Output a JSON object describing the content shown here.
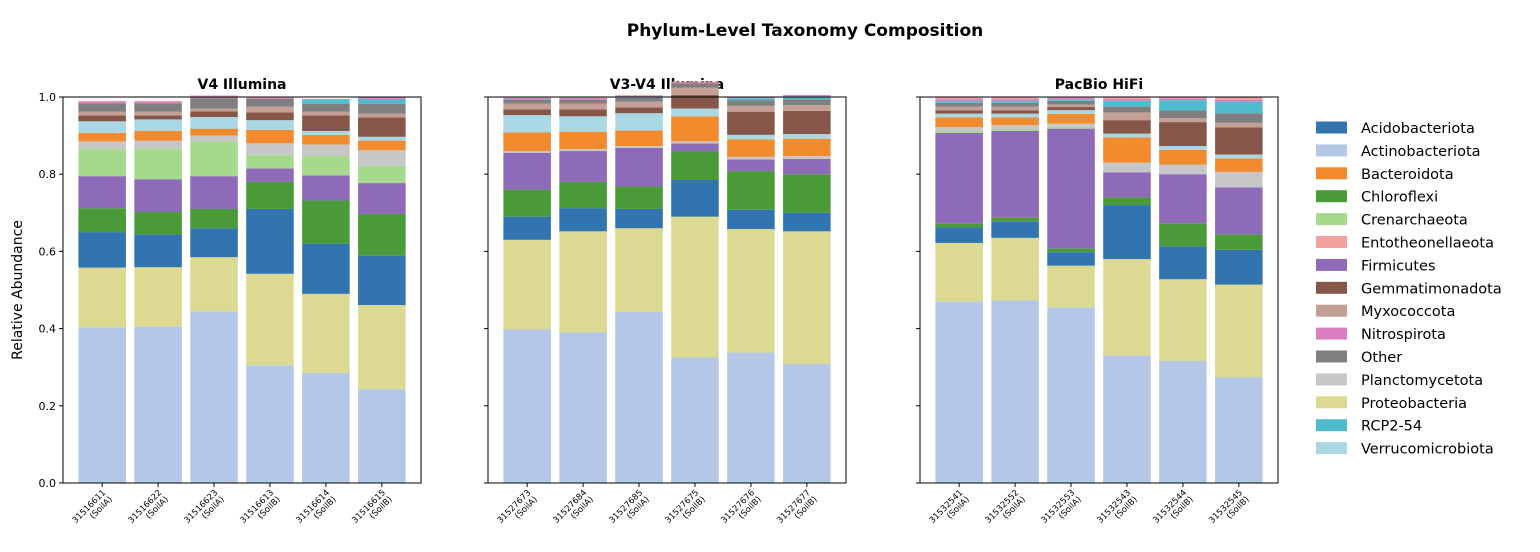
{
  "title": "Phylum-Level Taxonomy Composition",
  "legend_position": "right",
  "chart_data": {
    "type": "bar",
    "stacked": true,
    "title": "Phylum-Level Taxonomy Composition",
    "ylabel": "Relative Abundance",
    "ylim": [
      0,
      1
    ],
    "yticks": [
      "0.0",
      "0.2",
      "0.4",
      "0.6",
      "0.8",
      "1.0"
    ],
    "grid": false,
    "categories_order": [
      "Actinobacteriota",
      "Proteobacteria",
      "Acidobacteriota",
      "Chloroflexi",
      "Firmicutes",
      "Crenarchaeota",
      "Planctomycetota",
      "Bacteroidota",
      "Verrucomicrobiota",
      "Gemmatimonadota",
      "Myxococcota",
      "Other",
      "RCP2-54",
      "Nitrospirota",
      "Entotheonellaeota"
    ],
    "legend": [
      {
        "name": "Acidobacteriota",
        "color": "#3274b0"
      },
      {
        "name": "Actinobacteriota",
        "color": "#b4c7e7"
      },
      {
        "name": "Bacteroidota",
        "color": "#f28a2e"
      },
      {
        "name": "Chloroflexi",
        "color": "#4b9a39"
      },
      {
        "name": "Crenarchaeota",
        "color": "#a6d98e"
      },
      {
        "name": "Entotheonellaeota",
        "color": "#f2a19f"
      },
      {
        "name": "Firmicutes",
        "color": "#8e6bb8"
      },
      {
        "name": "Gemmatimonadota",
        "color": "#865748"
      },
      {
        "name": "Myxococcota",
        "color": "#c39f96"
      },
      {
        "name": "Nitrospirota",
        "color": "#d97fc0"
      },
      {
        "name": "Other",
        "color": "#7f7f7f"
      },
      {
        "name": "Planctomycetota",
        "color": "#c7c7c7"
      },
      {
        "name": "Proteobacteria",
        "color": "#dcda92"
      },
      {
        "name": "RCP2-54",
        "color": "#4ebccd"
      },
      {
        "name": "Verrucomicrobiota",
        "color": "#a9d8e4"
      }
    ],
    "panels": [
      {
        "title": "V4 Illumina",
        "categories": [
          "31516611\n(SoilA)",
          "31516622\n(SoilA)",
          "31516623\n(SoilA)",
          "31516613\n(SoilB)",
          "31516614\n(SoilB)",
          "31516615\n(SoilB)"
        ],
        "samples": [
          {
            "Actinobacteriota": 0.403,
            "Proteobacteria": 0.155,
            "Acidobacteriota": 0.092,
            "Chloroflexi": 0.062,
            "Firmicutes": 0.083,
            "Crenarchaeota": 0.07,
            "Planctomycetota": 0.02,
            "Bacteroidota": 0.022,
            "Verrucomicrobiota": 0.03,
            "Gemmatimonadota": 0.015,
            "Myxococcota": 0.01,
            "Other": 0.022,
            "RCP2-54": 0.0,
            "Nitrospirota": 0.004,
            "Entotheonellaeota": 0.002
          },
          {
            "Actinobacteriota": 0.405,
            "Proteobacteria": 0.154,
            "Acidobacteriota": 0.085,
            "Chloroflexi": 0.058,
            "Firmicutes": 0.085,
            "Crenarchaeota": 0.08,
            "Planctomycetota": 0.02,
            "Bacteroidota": 0.025,
            "Verrucomicrobiota": 0.03,
            "Gemmatimonadota": 0.01,
            "Myxococcota": 0.01,
            "Other": 0.022,
            "RCP2-54": 0.0,
            "Nitrospirota": 0.004,
            "Entotheonellaeota": 0.002
          },
          {
            "Actinobacteriota": 0.445,
            "Proteobacteria": 0.14,
            "Acidobacteriota": 0.075,
            "Chloroflexi": 0.05,
            "Firmicutes": 0.085,
            "Crenarchaeota": 0.09,
            "Planctomycetota": 0.015,
            "Bacteroidota": 0.018,
            "Verrucomicrobiota": 0.03,
            "Gemmatimonadota": 0.015,
            "Myxococcota": 0.007,
            "Other": 0.027,
            "RCP2-54": 0.0,
            "Nitrospirota": 0.005,
            "Entotheonellaeota": 0.002
          },
          {
            "Actinobacteriota": 0.305,
            "Proteobacteria": 0.237,
            "Acidobacteriota": 0.168,
            "Chloroflexi": 0.07,
            "Firmicutes": 0.035,
            "Crenarchaeota": 0.035,
            "Planctomycetota": 0.03,
            "Bacteroidota": 0.035,
            "Verrucomicrobiota": 0.025,
            "Gemmatimonadota": 0.02,
            "Myxococcota": 0.015,
            "Other": 0.02,
            "RCP2-54": 0.0,
            "Nitrospirota": 0.003,
            "Entotheonellaeota": 0.002
          },
          {
            "Actinobacteriota": 0.285,
            "Proteobacteria": 0.205,
            "Acidobacteriota": 0.13,
            "Chloroflexi": 0.112,
            "Firmicutes": 0.065,
            "Crenarchaeota": 0.05,
            "Planctomycetota": 0.03,
            "Bacteroidota": 0.025,
            "Verrucomicrobiota": 0.01,
            "Gemmatimonadota": 0.04,
            "Myxococcota": 0.01,
            "Other": 0.02,
            "RCP2-54": 0.01,
            "Nitrospirota": 0.003,
            "Entotheonellaeota": 0.0
          },
          {
            "Actinobacteriota": 0.243,
            "Proteobacteria": 0.218,
            "Acidobacteriota": 0.128,
            "Chloroflexi": 0.108,
            "Firmicutes": 0.08,
            "Crenarchaeota": 0.045,
            "Planctomycetota": 0.04,
            "Bacteroidota": 0.025,
            "Verrucomicrobiota": 0.01,
            "Gemmatimonadota": 0.05,
            "Myxococcota": 0.01,
            "Other": 0.025,
            "RCP2-54": 0.013,
            "Nitrospirota": 0.005,
            "Entotheonellaeota": 0.0
          }
        ]
      },
      {
        "title": "V3-V4 Illumina",
        "categories": [
          "31527673\n(SoilA)",
          "31527684\n(SoilA)",
          "31527685\n(SoilA)",
          "31527675\n(SoilB)",
          "31527676\n(SoilB)",
          "31527677\n(SoilB)"
        ],
        "samples": [
          {
            "Actinobacteriota": 0.398,
            "Proteobacteria": 0.232,
            "Acidobacteriota": 0.06,
            "Chloroflexi": 0.07,
            "Firmicutes": 0.095,
            "Crenarchaeota": 0.0,
            "Planctomycetota": 0.005,
            "Bacteroidota": 0.048,
            "Verrucomicrobiota": 0.045,
            "Gemmatimonadota": 0.015,
            "Myxococcota": 0.015,
            "Other": 0.01,
            "RCP2-54": 0.002,
            "Nitrospirota": 0.003,
            "Entotheonellaeota": 0.002
          },
          {
            "Actinobacteriota": 0.39,
            "Proteobacteria": 0.262,
            "Acidobacteriota": 0.06,
            "Chloroflexi": 0.068,
            "Firmicutes": 0.08,
            "Crenarchaeota": 0.0,
            "Planctomycetota": 0.005,
            "Bacteroidota": 0.045,
            "Verrucomicrobiota": 0.04,
            "Gemmatimonadota": 0.018,
            "Myxococcota": 0.015,
            "Other": 0.01,
            "RCP2-54": 0.002,
            "Nitrospirota": 0.003,
            "Entotheonellaeota": 0.002
          },
          {
            "Actinobacteriota": 0.443,
            "Proteobacteria": 0.217,
            "Acidobacteriota": 0.05,
            "Chloroflexi": 0.058,
            "Firmicutes": 0.1,
            "Crenarchaeota": 0.0,
            "Planctomycetota": 0.005,
            "Bacteroidota": 0.04,
            "Verrucomicrobiota": 0.045,
            "Gemmatimonadota": 0.015,
            "Myxococcota": 0.015,
            "Other": 0.01,
            "RCP2-54": 0.002,
            "Nitrospirota": 0.003,
            "Entotheonellaeota": 0.002
          },
          {
            "Actinobacteriota": 0.325,
            "Proteobacteria": 0.365,
            "Acidobacteriota": 0.095,
            "Chloroflexi": 0.075,
            "Firmicutes": 0.02,
            "Crenarchaeota": 0.0,
            "Planctomycetota": 0.005,
            "Bacteroidota": 0.065,
            "Verrucomicrobiota": 0.02,
            "Gemmatimonadota": 0.035,
            "Myxococcota": 0.02,
            "Other": 0.01,
            "RCP2-54": 0.0,
            "Nitrospirota": 0.003,
            "Entotheonellaeota": 0.002
          },
          {
            "Actinobacteriota": 0.338,
            "Proteobacteria": 0.32,
            "Acidobacteriota": 0.05,
            "Chloroflexi": 0.1,
            "Firmicutes": 0.03,
            "Crenarchaeota": 0.0,
            "Planctomycetota": 0.007,
            "Bacteroidota": 0.045,
            "Verrucomicrobiota": 0.012,
            "Gemmatimonadota": 0.06,
            "Myxococcota": 0.015,
            "Other": 0.015,
            "RCP2-54": 0.005,
            "Nitrospirota": 0.003,
            "Entotheonellaeota": 0.0
          },
          {
            "Actinobacteriota": 0.308,
            "Proteobacteria": 0.344,
            "Acidobacteriota": 0.048,
            "Chloroflexi": 0.1,
            "Firmicutes": 0.04,
            "Crenarchaeota": 0.0,
            "Planctomycetota": 0.007,
            "Bacteroidota": 0.045,
            "Verrucomicrobiota": 0.012,
            "Gemmatimonadota": 0.06,
            "Myxococcota": 0.015,
            "Other": 0.015,
            "RCP2-54": 0.008,
            "Nitrospirota": 0.003,
            "Entotheonellaeota": 0.0
          }
        ]
      },
      {
        "title": "PacBio HiFi",
        "categories": [
          "31532541\n(SoilA)",
          "31532552\n(SoilA)",
          "31532553\n(SoilA)",
          "31532543\n(SoilB)",
          "31532544\n(SoilB)",
          "31532545\n(SoilB)"
        ],
        "samples": [
          {
            "Actinobacteriota": 0.47,
            "Proteobacteria": 0.152,
            "Acidobacteriota": 0.04,
            "Chloroflexi": 0.01,
            "Firmicutes": 0.235,
            "Crenarchaeota": 0.005,
            "Planctomycetota": 0.01,
            "Bacteroidota": 0.025,
            "Verrucomicrobiota": 0.01,
            "Gemmatimonadota": 0.008,
            "Myxococcota": 0.01,
            "Other": 0.01,
            "RCP2-54": 0.005,
            "Nitrospirota": 0.005,
            "Entotheonellaeota": 0.005
          },
          {
            "Actinobacteriota": 0.473,
            "Proteobacteria": 0.162,
            "Acidobacteriota": 0.042,
            "Chloroflexi": 0.01,
            "Firmicutes": 0.225,
            "Crenarchaeota": 0.005,
            "Planctomycetota": 0.01,
            "Bacteroidota": 0.02,
            "Verrucomicrobiota": 0.01,
            "Gemmatimonadota": 0.008,
            "Myxococcota": 0.01,
            "Other": 0.01,
            "RCP2-54": 0.005,
            "Nitrospirota": 0.005,
            "Entotheonellaeota": 0.005
          },
          {
            "Actinobacteriota": 0.455,
            "Proteobacteria": 0.108,
            "Acidobacteriota": 0.035,
            "Chloroflexi": 0.01,
            "Firmicutes": 0.31,
            "Crenarchaeota": 0.005,
            "Planctomycetota": 0.008,
            "Bacteroidota": 0.025,
            "Verrucomicrobiota": 0.01,
            "Gemmatimonadota": 0.008,
            "Myxococcota": 0.006,
            "Other": 0.01,
            "RCP2-54": 0.004,
            "Nitrospirota": 0.004,
            "Entotheonellaeota": 0.002
          },
          {
            "Actinobacteriota": 0.33,
            "Proteobacteria": 0.25,
            "Acidobacteriota": 0.14,
            "Chloroflexi": 0.02,
            "Firmicutes": 0.065,
            "Crenarchaeota": 0.0,
            "Planctomycetota": 0.025,
            "Bacteroidota": 0.065,
            "Verrucomicrobiota": 0.01,
            "Gemmatimonadota": 0.035,
            "Myxococcota": 0.02,
            "Other": 0.015,
            "RCP2-54": 0.015,
            "Nitrospirota": 0.005,
            "Entotheonellaeota": 0.005
          },
          {
            "Actinobacteriota": 0.316,
            "Proteobacteria": 0.212,
            "Acidobacteriota": 0.085,
            "Chloroflexi": 0.06,
            "Firmicutes": 0.127,
            "Crenarchaeota": 0.0,
            "Planctomycetota": 0.025,
            "Bacteroidota": 0.038,
            "Verrucomicrobiota": 0.01,
            "Gemmatimonadota": 0.062,
            "Myxococcota": 0.01,
            "Other": 0.02,
            "RCP2-54": 0.027,
            "Nitrospirota": 0.005,
            "Entotheonellaeota": 0.003
          },
          {
            "Actinobacteriota": 0.274,
            "Proteobacteria": 0.24,
            "Acidobacteriota": 0.09,
            "Chloroflexi": 0.04,
            "Firmicutes": 0.122,
            "Crenarchaeota": 0.0,
            "Planctomycetota": 0.04,
            "Bacteroidota": 0.035,
            "Verrucomicrobiota": 0.01,
            "Gemmatimonadota": 0.07,
            "Myxococcota": 0.012,
            "Other": 0.025,
            "RCP2-54": 0.03,
            "Nitrospirota": 0.005,
            "Entotheonellaeota": 0.007
          }
        ]
      }
    ]
  }
}
